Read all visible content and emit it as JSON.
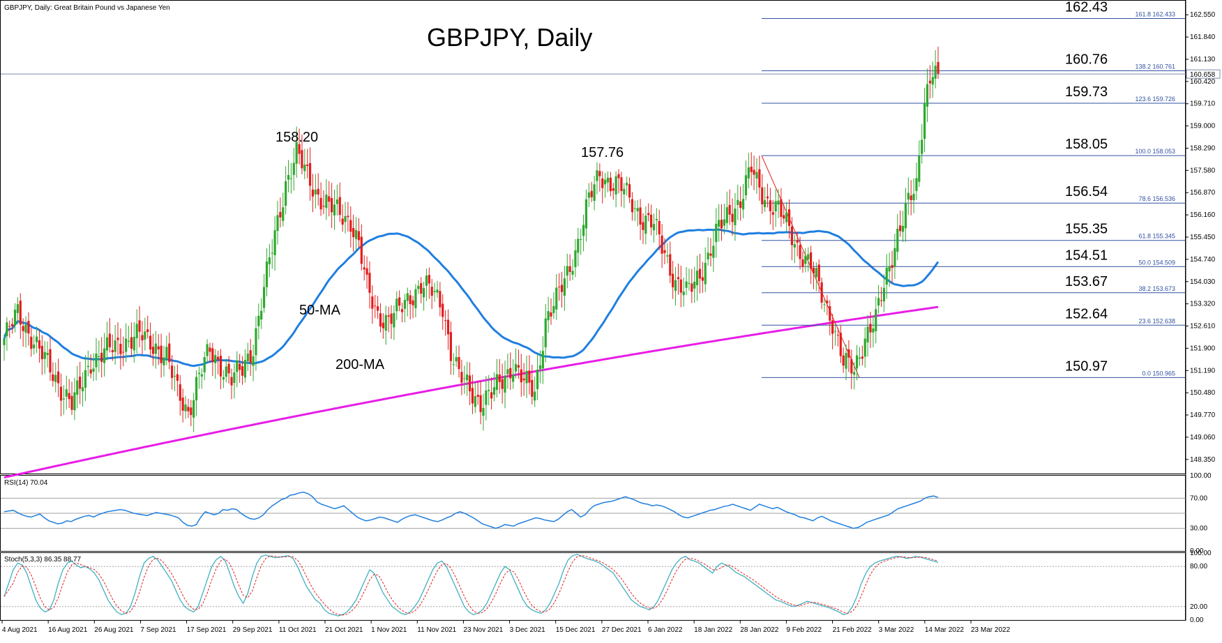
{
  "header": {
    "symbol_info": "GBPJPY, Daily:  Great Britain Pound vs Japanese Yen",
    "title": "GBPJPY, Daily"
  },
  "chart_data": {
    "type": "candlestick",
    "price_axis": {
      "ticks": [
        "162.550",
        "161.840",
        "161.130",
        "160.420",
        "159.710",
        "159.000",
        "158.290",
        "157.580",
        "156.870",
        "156.160",
        "155.450",
        "154.740",
        "154.030",
        "153.320",
        "152.610",
        "151.900",
        "151.190",
        "150.480",
        "149.770",
        "149.060",
        "148.350"
      ],
      "last_price": "160.658",
      "range": [
        147.9,
        163.0
      ]
    },
    "time_axis": {
      "labels": [
        "4 Aug 2021",
        "16 Aug 2021",
        "26 Aug 2021",
        "7 Sep 2021",
        "17 Sep 2021",
        "29 Sep 2021",
        "11 Oct 2021",
        "21 Oct 2021",
        "1 Nov 2021",
        "11 Nov 2021",
        "23 Nov 2021",
        "3 Dec 2021",
        "15 Dec 2021",
        "27 Dec 2021",
        "6 Jan 2022",
        "18 Jan 2022",
        "28 Jan 2022",
        "9 Feb 2022",
        "21 Feb 2022",
        "3 Mar 2022",
        "14 Mar 2022",
        "23 Mar 2022"
      ]
    },
    "annotations": {
      "peak_labels": [
        {
          "text": "158.20",
          "value": 158.2
        },
        {
          "text": "157.76",
          "value": 157.76
        }
      ],
      "ma_labels": {
        "ma50": "50-MA",
        "ma200": "200-MA"
      }
    },
    "fibonacci": {
      "levels": [
        {
          "ratio": "161.8",
          "value_text": "162.433",
          "label": "162.43",
          "value": 162.433
        },
        {
          "ratio": "138.2",
          "value_text": "160.761",
          "label": "160.76",
          "value": 160.761
        },
        {
          "ratio": "123.6",
          "value_text": "159.726",
          "label": "159.73",
          "value": 159.726
        },
        {
          "ratio": "100.0",
          "value_text": "158.053",
          "label": "158.05",
          "value": 158.053
        },
        {
          "ratio": "78.6",
          "value_text": "156.536",
          "label": "156.54",
          "value": 156.536
        },
        {
          "ratio": "61.8",
          "value_text": "155.345",
          "label": "155.35",
          "value": 155.345
        },
        {
          "ratio": "50.0",
          "value_text": "154.509",
          "label": "154.51",
          "value": 154.509
        },
        {
          "ratio": "38.2",
          "value_text": "153.673",
          "label": "153.67",
          "value": 153.673
        },
        {
          "ratio": "23.6",
          "value_text": "152.638",
          "label": "152.64",
          "value": 152.638
        },
        {
          "ratio": "0.0",
          "value_text": "150.965",
          "label": "150.97",
          "value": 150.965
        }
      ]
    },
    "rsi": {
      "label": "RSI(14) 70.04",
      "ticks": [
        "100.00",
        "70.00",
        "30.00",
        "0.00"
      ],
      "levels": [
        70,
        50,
        30
      ],
      "values": [
        52,
        53,
        54,
        51,
        48,
        46,
        45,
        47,
        49,
        44,
        40,
        38,
        36,
        37,
        40,
        39,
        42,
        44,
        46,
        47,
        45,
        48,
        50,
        52,
        53,
        54,
        55,
        54,
        52,
        50,
        49,
        48,
        47,
        49,
        51,
        50,
        49,
        48,
        46,
        44,
        38,
        34,
        33,
        35,
        45,
        52,
        50,
        48,
        50,
        55,
        54,
        56,
        55,
        50,
        46,
        43,
        42,
        44,
        48,
        55,
        60,
        64,
        68,
        70,
        74,
        75,
        77,
        78,
        76,
        72,
        65,
        62,
        60,
        58,
        56,
        58,
        60,
        55,
        50,
        45,
        42,
        40,
        41,
        43,
        45,
        44,
        42,
        40,
        38,
        42,
        45,
        47,
        48,
        46,
        44,
        42,
        40,
        39,
        41,
        44,
        46,
        50,
        52,
        50,
        47,
        44,
        40,
        36,
        34,
        32,
        30,
        32,
        35,
        34,
        33,
        36,
        38,
        40,
        42,
        44,
        43,
        41,
        40,
        39,
        42,
        47,
        52,
        55,
        50,
        45,
        48,
        55,
        60,
        62,
        64,
        65,
        66,
        68,
        70,
        72,
        70,
        68,
        65,
        63,
        62,
        60,
        61,
        60,
        58,
        55,
        52,
        48,
        45,
        44,
        46,
        48,
        50,
        52,
        54,
        55,
        57,
        59,
        60,
        62,
        60,
        58,
        56,
        54,
        58,
        62,
        60,
        58,
        56,
        58,
        55,
        52,
        50,
        48,
        45,
        44,
        42,
        40,
        44,
        46,
        43,
        40,
        38,
        36,
        34,
        32,
        30,
        31,
        34,
        38,
        40,
        42,
        44,
        46,
        48,
        52,
        56,
        58,
        60,
        62,
        64,
        66,
        70,
        72,
        73,
        71
      ]
    },
    "stochastic": {
      "label": "Stoch(5,3,3) 86.35 88.77",
      "ticks": [
        "100.00",
        "80.00",
        "20.00",
        "0.00"
      ],
      "levels": [
        80,
        20
      ],
      "k": [
        35,
        55,
        75,
        85,
        82,
        70,
        50,
        30,
        18,
        12,
        15,
        30,
        55,
        75,
        85,
        88,
        82,
        78,
        80,
        76,
        70,
        60,
        45,
        30,
        20,
        12,
        8,
        10,
        20,
        40,
        65,
        85,
        92,
        95,
        90,
        80,
        70,
        60,
        45,
        30,
        20,
        15,
        12,
        20,
        40,
        60,
        80,
        90,
        95,
        88,
        70,
        50,
        35,
        25,
        40,
        65,
        85,
        95,
        97,
        95,
        93,
        94,
        95,
        96,
        92,
        80,
        65,
        50,
        40,
        30,
        25,
        15,
        10,
        8,
        6,
        8,
        12,
        20,
        30,
        45,
        60,
        75,
        70,
        55,
        40,
        30,
        20,
        15,
        10,
        8,
        12,
        20,
        30,
        45,
        60,
        75,
        85,
        88,
        80,
        65,
        50,
        35,
        20,
        12,
        8,
        10,
        15,
        25,
        40,
        55,
        70,
        80,
        75,
        60,
        45,
        30,
        20,
        15,
        12,
        10,
        15,
        25,
        40,
        55,
        75,
        90,
        96,
        98,
        95,
        92,
        90,
        88,
        85,
        80,
        75,
        70,
        60,
        50,
        40,
        30,
        25,
        20,
        18,
        15,
        20,
        30,
        45,
        60,
        75,
        85,
        92,
        95,
        90,
        88,
        85,
        80,
        75,
        70,
        80,
        85,
        82,
        78,
        72,
        68,
        65,
        60,
        55,
        50,
        45,
        40,
        35,
        30,
        28,
        25,
        22,
        20,
        22,
        25,
        28,
        26,
        24,
        22,
        20,
        18,
        15,
        12,
        8,
        10,
        20,
        35,
        55,
        70,
        80,
        85,
        88,
        90,
        92,
        94,
        95,
        94,
        92,
        93,
        95,
        94,
        92,
        90,
        88,
        86
      ]
    }
  }
}
